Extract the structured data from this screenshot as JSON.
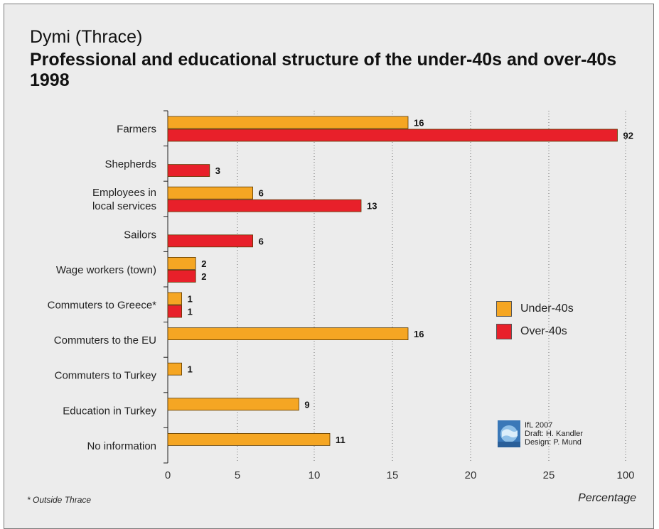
{
  "title": {
    "line1": "Dymi (Thrace)",
    "line2": "Professional and educational structure of the under-40s and over-40s 1998"
  },
  "chart_data": {
    "type": "bar",
    "orientation": "horizontal",
    "categories": [
      [
        "Farmers"
      ],
      [
        "Shepherds"
      ],
      [
        "Employees in",
        "local services"
      ],
      [
        "Sailors"
      ],
      [
        "Wage workers (town)"
      ],
      [
        "Commuters to Greece*"
      ],
      [
        "Commuters to the EU"
      ],
      [
        "Commuters to Turkey"
      ],
      [
        "Education in Turkey"
      ],
      [
        "No information"
      ]
    ],
    "series": [
      {
        "name": "Under-40s",
        "color": "#f5a623",
        "values": [
          16,
          null,
          6,
          null,
          2,
          1,
          16,
          1,
          9,
          11
        ]
      },
      {
        "name": "Over-40s",
        "color": "#e8202a",
        "values": [
          92,
          3,
          13,
          6,
          2,
          1,
          null,
          null,
          null,
          null
        ]
      }
    ],
    "value_labels": {
      "Under-40s": [
        "16",
        "",
        "6",
        "",
        "2",
        "1",
        "16",
        "1",
        "9",
        "11"
      ],
      "Over-40s": [
        "92",
        "3",
        "13",
        "6",
        "2",
        "1",
        "",
        "",
        "",
        ""
      ]
    },
    "x_ticks": [
      0,
      5,
      10,
      15,
      20,
      25,
      100
    ],
    "xlabel": "Percentage",
    "grid": "vertical dotted",
    "legend_position": "right"
  },
  "footnote": "* Outside Thrace",
  "credits": [
    "IfL 2007",
    "Draft: H. Kandler",
    "Design: P. Mund"
  ]
}
